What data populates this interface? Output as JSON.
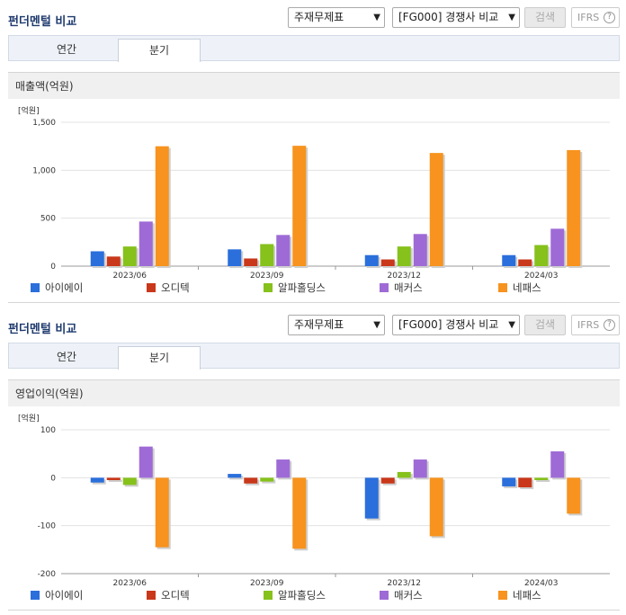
{
  "header": {
    "title": "펀더멘털 비교",
    "select_statement": "주재무제표",
    "select_peer": "[FG000] 경쟁사 비교",
    "search_label": "검색",
    "ifrs_label": "IFRS",
    "help_glyph": "?",
    "tabs": [
      "연간",
      "분기"
    ],
    "active_tab": "분기"
  },
  "legend_colors": [
    "#2a6fdb",
    "#c9381a",
    "#86c11c",
    "#9e6bd6",
    "#f7931e"
  ],
  "chart_data": [
    {
      "type": "bar",
      "title": "매출액(억원)",
      "unit_label": "[억원]",
      "categories": [
        "2023/06",
        "2023/09",
        "2023/12",
        "2024/03"
      ],
      "ylim": [
        0,
        1500
      ],
      "yticks": [
        0,
        500,
        1000,
        1500
      ],
      "ytick_labels": [
        "0",
        "500",
        "1,000",
        "1,500"
      ],
      "grid": true,
      "legend_position": "bottom",
      "series": [
        {
          "name": "아이에이",
          "values": [
            155,
            175,
            115,
            115
          ]
        },
        {
          "name": "오디텍",
          "values": [
            100,
            80,
            70,
            70
          ]
        },
        {
          "name": "알파홀딩스",
          "values": [
            205,
            230,
            205,
            220
          ]
        },
        {
          "name": "매커스",
          "values": [
            465,
            325,
            335,
            390
          ]
        },
        {
          "name": "네패스",
          "values": [
            1250,
            1255,
            1180,
            1210
          ]
        }
      ]
    },
    {
      "type": "bar",
      "title": "영업이익(억원)",
      "unit_label": "[억원]",
      "categories": [
        "2023/06",
        "2023/09",
        "2023/12",
        "2024/03"
      ],
      "ylim": [
        -200,
        100
      ],
      "yticks": [
        -200,
        -100,
        0,
        100
      ],
      "ytick_labels": [
        "-200",
        "-100",
        "0",
        "100"
      ],
      "grid": true,
      "legend_position": "bottom",
      "series": [
        {
          "name": "아이에이",
          "values": [
            -10,
            8,
            -85,
            -18
          ]
        },
        {
          "name": "오디텍",
          "values": [
            -5,
            -12,
            -12,
            -20
          ]
        },
        {
          "name": "알파홀딩스",
          "values": [
            -15,
            -8,
            12,
            -5
          ]
        },
        {
          "name": "매커스",
          "values": [
            65,
            38,
            38,
            55
          ]
        },
        {
          "name": "네패스",
          "values": [
            -145,
            -148,
            -122,
            -75
          ]
        }
      ]
    }
  ]
}
